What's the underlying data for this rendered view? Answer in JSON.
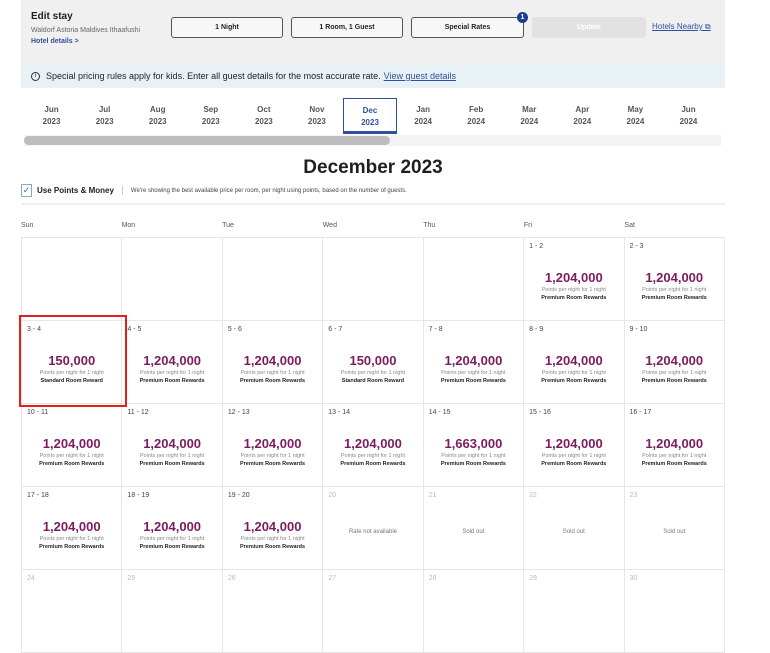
{
  "edit_stay": {
    "title": "Edit stay",
    "hotel": "Waldorf Astoria Maldives Ithaafushi",
    "hotel_details": "Hotel details >",
    "nights": "1 Night",
    "rooms": "1 Room, 1 Guest",
    "special_rates": "Special Rates",
    "special_rates_badge": "1",
    "update": "Update",
    "hotels_nearby": "Hotels Nearby"
  },
  "banner": {
    "text": "Special pricing rules apply for kids. Enter all guest details for the most accurate rate.",
    "link": "View guest details"
  },
  "months": [
    {
      "m": "Jun",
      "y": "2023"
    },
    {
      "m": "Jul",
      "y": "2023"
    },
    {
      "m": "Aug",
      "y": "2023"
    },
    {
      "m": "Sep",
      "y": "2023"
    },
    {
      "m": "Oct",
      "y": "2023"
    },
    {
      "m": "Nov",
      "y": "2023"
    },
    {
      "m": "Dec",
      "y": "2023",
      "selected": true
    },
    {
      "m": "Jan",
      "y": "2024"
    },
    {
      "m": "Feb",
      "y": "2024"
    },
    {
      "m": "Mar",
      "y": "2024"
    },
    {
      "m": "Apr",
      "y": "2024"
    },
    {
      "m": "May",
      "y": "2024"
    },
    {
      "m": "Jun",
      "y": "2024"
    }
  ],
  "calendar": {
    "title": "December 2023",
    "use_points_label": "Use Points & Money",
    "use_points_checked": true,
    "note": "We're showing the best available price per room, per night using points, based on the number of guests.",
    "weekdays": [
      "Sun",
      "Mon",
      "Tue",
      "Wed",
      "Thu",
      "Fri",
      "Sat"
    ],
    "points_sub": "Points per night for 1 night",
    "weeks": [
      [
        null,
        null,
        null,
        null,
        null,
        {
          "d": "1 - 2",
          "p": "1,204,000",
          "r": "Premium Room Rewards"
        },
        {
          "d": "2 - 3",
          "p": "1,204,000",
          "r": "Premium Room Rewards"
        }
      ],
      [
        {
          "d": "3 - 4",
          "p": "150,000",
          "r": "Standard Room Reward",
          "highlighted": true
        },
        {
          "d": "4 - 5",
          "p": "1,204,000",
          "r": "Premium Room Rewards"
        },
        {
          "d": "5 - 6",
          "p": "1,204,000",
          "r": "Premium Room Rewards"
        },
        {
          "d": "6 - 7",
          "p": "150,000",
          "r": "Standard Room Reward"
        },
        {
          "d": "7 - 8",
          "p": "1,204,000",
          "r": "Premium Room Rewards"
        },
        {
          "d": "8 - 9",
          "p": "1,204,000",
          "r": "Premium Room Rewards"
        },
        {
          "d": "9 - 10",
          "p": "1,204,000",
          "r": "Premium Room Rewards"
        }
      ],
      [
        {
          "d": "10 - 11",
          "p": "1,204,000",
          "r": "Premium Room Rewards"
        },
        {
          "d": "11 - 12",
          "p": "1,204,000",
          "r": "Premium Room Rewards"
        },
        {
          "d": "12 - 13",
          "p": "1,204,000",
          "r": "Premium Room Rewards"
        },
        {
          "d": "13 - 14",
          "p": "1,204,000",
          "r": "Premium Room Rewards"
        },
        {
          "d": "14 - 15",
          "p": "1,663,000",
          "r": "Premium Room Rewards"
        },
        {
          "d": "15 - 16",
          "p": "1,204,000",
          "r": "Premium Room Rewards"
        },
        {
          "d": "16 - 17",
          "p": "1,204,000",
          "r": "Premium Room Rewards"
        }
      ],
      [
        {
          "d": "17 - 18",
          "p": "1,204,000",
          "r": "Premium Room Rewards"
        },
        {
          "d": "18 - 19",
          "p": "1,204,000",
          "r": "Premium Room Rewards"
        },
        {
          "d": "19 - 20",
          "p": "1,204,000",
          "r": "Premium Room Rewards"
        },
        {
          "d": "20",
          "msg": "Rate not available"
        },
        {
          "d": "21",
          "msg": "Sold out"
        },
        {
          "d": "22",
          "msg": "Sold out"
        },
        {
          "d": "23",
          "msg": "Sold out"
        }
      ],
      [
        {
          "d": "24"
        },
        {
          "d": "25"
        },
        {
          "d": "26"
        },
        {
          "d": "27"
        },
        {
          "d": "28"
        },
        {
          "d": "29"
        },
        {
          "d": "30"
        }
      ]
    ]
  },
  "colors": {
    "points": "#7b1c5e",
    "link": "#2f4fa0",
    "highlight": "#e0201b"
  }
}
